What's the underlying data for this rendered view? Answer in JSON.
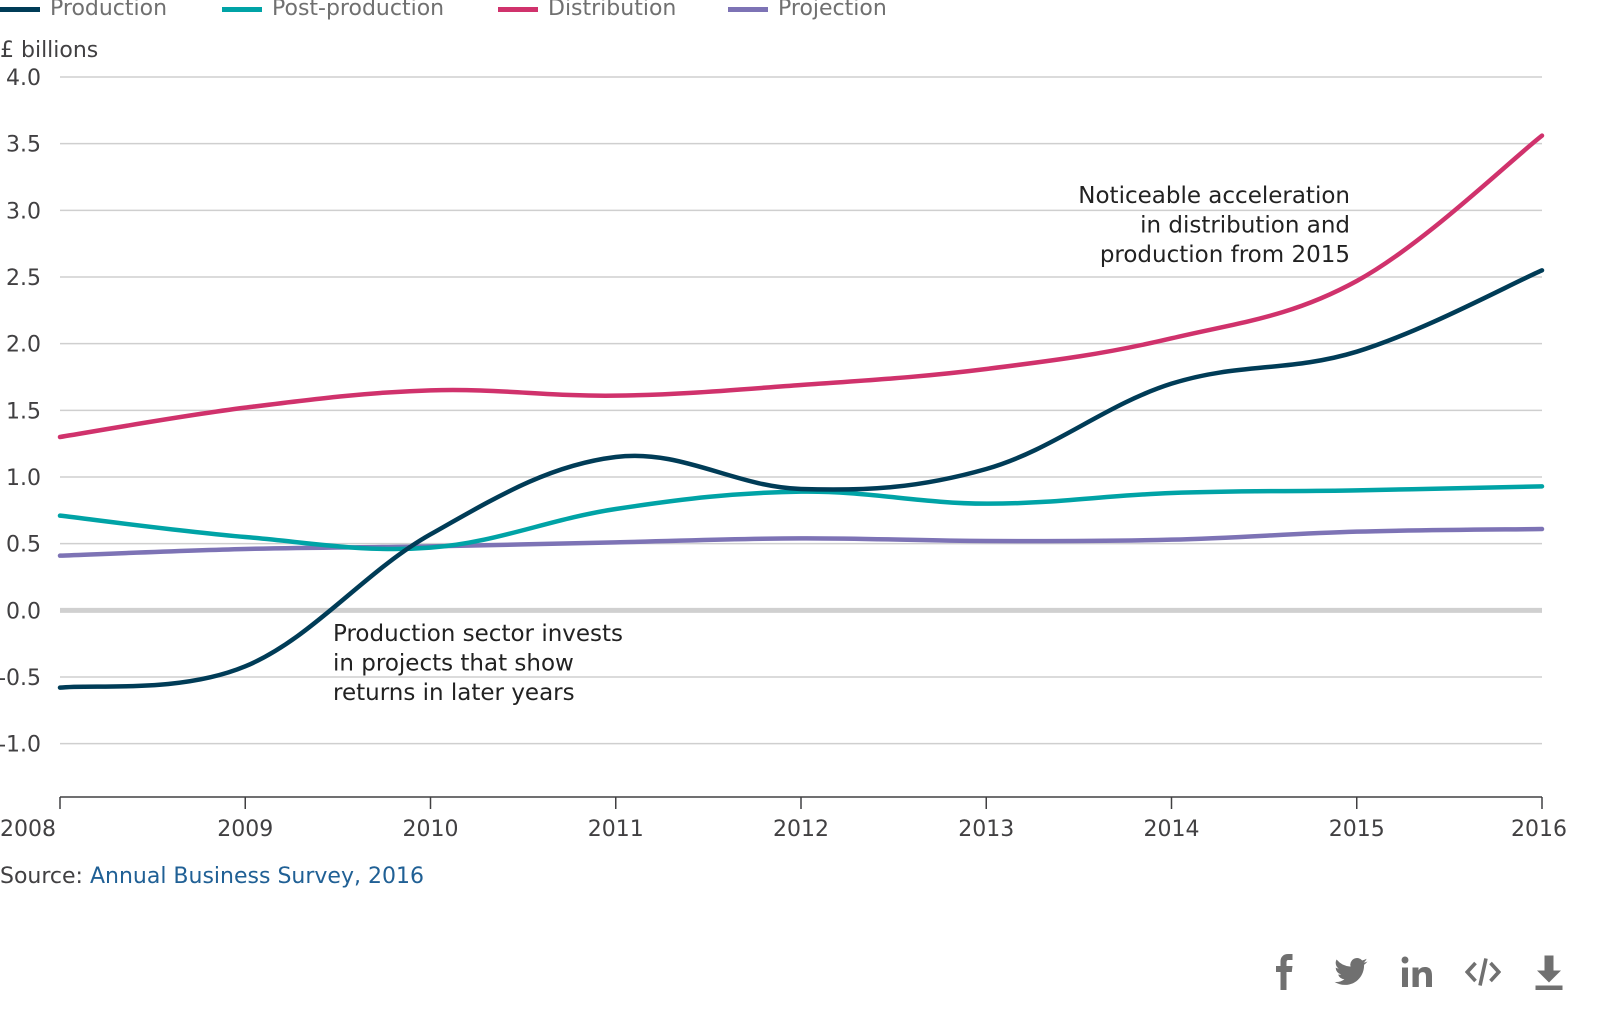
{
  "legend": [
    {
      "label": "Production",
      "color": "#003c57"
    },
    {
      "label": "Post-production",
      "color": "#00a3a6"
    },
    {
      "label": "Distribution",
      "color": "#d0326c"
    },
    {
      "label": "Projection",
      "color": "#7d73b5"
    }
  ],
  "source": {
    "prefix": "Source: ",
    "link_text": "Annual Business Survey, 2016"
  },
  "share_icons": [
    "facebook-icon",
    "twitter-icon",
    "linkedin-icon",
    "embed-icon",
    "download-icon"
  ],
  "chart_data": {
    "type": "line",
    "ylabel": "£ billions",
    "ylim": [
      -1.4,
      4.0
    ],
    "yticks": [
      "4.0",
      "3.5",
      "3.0",
      "2.5",
      "2.0",
      "1.5",
      "1.0",
      "0.5",
      "0.0",
      "-0.5",
      "-1.0"
    ],
    "x": [
      "2008",
      "2009",
      "2010",
      "2011",
      "2012",
      "2013",
      "2014",
      "2015",
      "2016"
    ],
    "series": [
      {
        "name": "Production",
        "color": "#003c57",
        "values": [
          -0.58,
          -0.42,
          0.57,
          1.15,
          0.91,
          1.06,
          1.7,
          1.94,
          2.55
        ]
      },
      {
        "name": "Post-production",
        "color": "#00a3a6",
        "values": [
          0.71,
          0.55,
          0.47,
          0.76,
          0.89,
          0.8,
          0.88,
          0.9,
          0.93
        ]
      },
      {
        "name": "Distribution",
        "color": "#d0326c",
        "values": [
          1.3,
          1.52,
          1.65,
          1.61,
          1.69,
          1.81,
          2.04,
          2.47,
          3.56
        ]
      },
      {
        "name": "Projection",
        "color": "#7d73b5",
        "values": [
          0.41,
          0.46,
          0.48,
          0.51,
          0.54,
          0.52,
          0.53,
          0.59,
          0.61
        ]
      }
    ],
    "annotations": [
      {
        "lines": [
          "Noticeable acceleration",
          "in distribution and",
          "production from 2015"
        ],
        "align": "right"
      },
      {
        "lines": [
          "Production sector invests",
          "in projects that show",
          "returns in later years"
        ],
        "align": "left"
      }
    ],
    "grid": true,
    "legend_position": "top-left"
  }
}
